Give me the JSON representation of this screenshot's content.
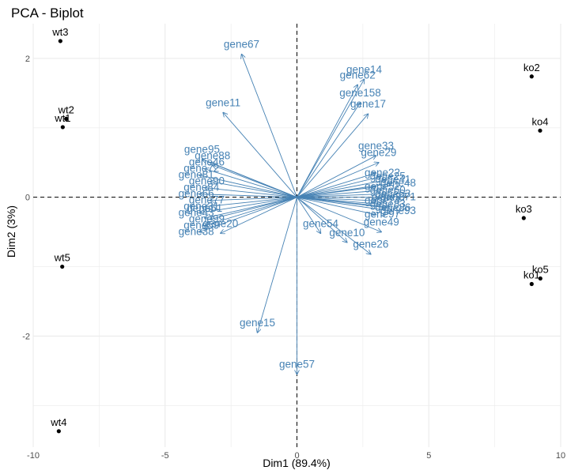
{
  "chart_data": {
    "type": "scatter",
    "title": "PCA - Biplot",
    "xlabel": "Dim1 (89.4%)",
    "ylabel": "Dim2 (3%)",
    "xlim": [
      -10,
      10
    ],
    "ylim": [
      -3.6,
      2.5
    ],
    "xticks": [
      -10,
      -5,
      0,
      5,
      10
    ],
    "yticks": [
      -2,
      0,
      2
    ],
    "grid": true,
    "legend": "none",
    "colors": {
      "points": "#000000",
      "arrows": "#4682B4",
      "refline": "#000000",
      "grid": "#ebebeb"
    },
    "individuals": [
      {
        "label": "wt3",
        "x": -8.97,
        "y": 2.25
      },
      {
        "label": "wt2",
        "x": -8.75,
        "y": 1.13
      },
      {
        "label": "wt1",
        "x": -8.88,
        "y": 1.01
      },
      {
        "label": "wt5",
        "x": -8.9,
        "y": -1.0
      },
      {
        "label": "wt4",
        "x": -9.03,
        "y": -3.37
      },
      {
        "label": "ko2",
        "x": 8.9,
        "y": 1.74
      },
      {
        "label": "ko4",
        "x": 9.22,
        "y": 0.96
      },
      {
        "label": "ko3",
        "x": 8.6,
        "y": -0.3
      },
      {
        "label": "ko5",
        "x": 9.23,
        "y": -1.17
      },
      {
        "label": "ko1",
        "x": 8.9,
        "y": -1.25
      }
    ],
    "variables": [
      {
        "label": "gene67",
        "x": -2.1,
        "y": 2.06
      },
      {
        "label": "gene11",
        "x": -2.8,
        "y": 1.22
      },
      {
        "label": "gene14",
        "x": 2.55,
        "y": 1.7
      },
      {
        "label": "gene62",
        "x": 2.3,
        "y": 1.62
      },
      {
        "label": "gene158",
        "x": 2.4,
        "y": 1.36
      },
      {
        "label": "gene17",
        "x": 2.7,
        "y": 1.2
      },
      {
        "label": "gene95",
        "x": -3.6,
        "y": 0.55
      },
      {
        "label": "gene88",
        "x": -3.2,
        "y": 0.46
      },
      {
        "label": "gene20",
        "x": -2.9,
        "y": -0.52
      },
      {
        "label": "gene51",
        "x": -3.5,
        "y": -0.3
      },
      {
        "label": "gene33",
        "x": 3.0,
        "y": 0.6
      },
      {
        "label": "gene29",
        "x": 3.1,
        "y": 0.5
      },
      {
        "label": "gene54",
        "x": 0.9,
        "y": -0.52
      },
      {
        "label": "gene10",
        "x": 1.9,
        "y": -0.65
      },
      {
        "label": "gene26",
        "x": 2.8,
        "y": -0.82
      },
      {
        "label": "gene49",
        "x": 3.2,
        "y": -0.5
      },
      {
        "label": "gene37",
        "x": 3.5,
        "y": -0.14
      },
      {
        "label": "gene15",
        "x": -1.5,
        "y": -1.95
      },
      {
        "label": "gene57",
        "x": 0.0,
        "y": -2.55
      }
    ],
    "cluster_left": [
      "gene46",
      "gene72",
      "gene81",
      "gene90",
      "gene84",
      "gene66",
      "gene77",
      "gene31",
      "gene43",
      "gene99",
      "gene59",
      "gene38"
    ],
    "cluster_right": [
      "gene22",
      "gene25",
      "gene41",
      "gene48",
      "gene52",
      "gene60",
      "gene63",
      "gene71",
      "gene74",
      "gene83",
      "gene86",
      "gene93",
      "gene97"
    ]
  }
}
